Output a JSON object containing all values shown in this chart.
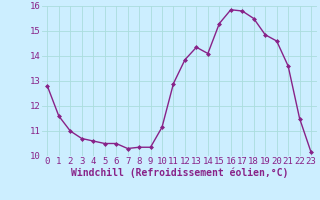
{
  "x": [
    0,
    1,
    2,
    3,
    4,
    5,
    6,
    7,
    8,
    9,
    10,
    11,
    12,
    13,
    14,
    15,
    16,
    17,
    18,
    19,
    20,
    21,
    22,
    23
  ],
  "y": [
    12.8,
    11.6,
    11.0,
    10.7,
    10.6,
    10.5,
    10.5,
    10.3,
    10.35,
    10.35,
    11.15,
    12.9,
    13.85,
    14.35,
    14.1,
    15.3,
    15.85,
    15.8,
    15.5,
    14.85,
    14.6,
    13.6,
    11.5,
    10.15
  ],
  "line_color": "#882288",
  "marker": "D",
  "marker_size": 2.0,
  "background_color": "#cceeff",
  "grid_color": "#aadddd",
  "xlabel": "Windchill (Refroidissement éolien,°C)",
  "xlabel_fontsize": 7,
  "ylim": [
    10,
    16
  ],
  "xlim": [
    -0.5,
    23.5
  ],
  "ytick_values": [
    10,
    11,
    12,
    13,
    14,
    15,
    16
  ],
  "xtick_values": [
    0,
    1,
    2,
    3,
    4,
    5,
    6,
    7,
    8,
    9,
    10,
    11,
    12,
    13,
    14,
    15,
    16,
    17,
    18,
    19,
    20,
    21,
    22,
    23
  ],
  "tick_fontsize": 6.5,
  "line_width": 1.0
}
